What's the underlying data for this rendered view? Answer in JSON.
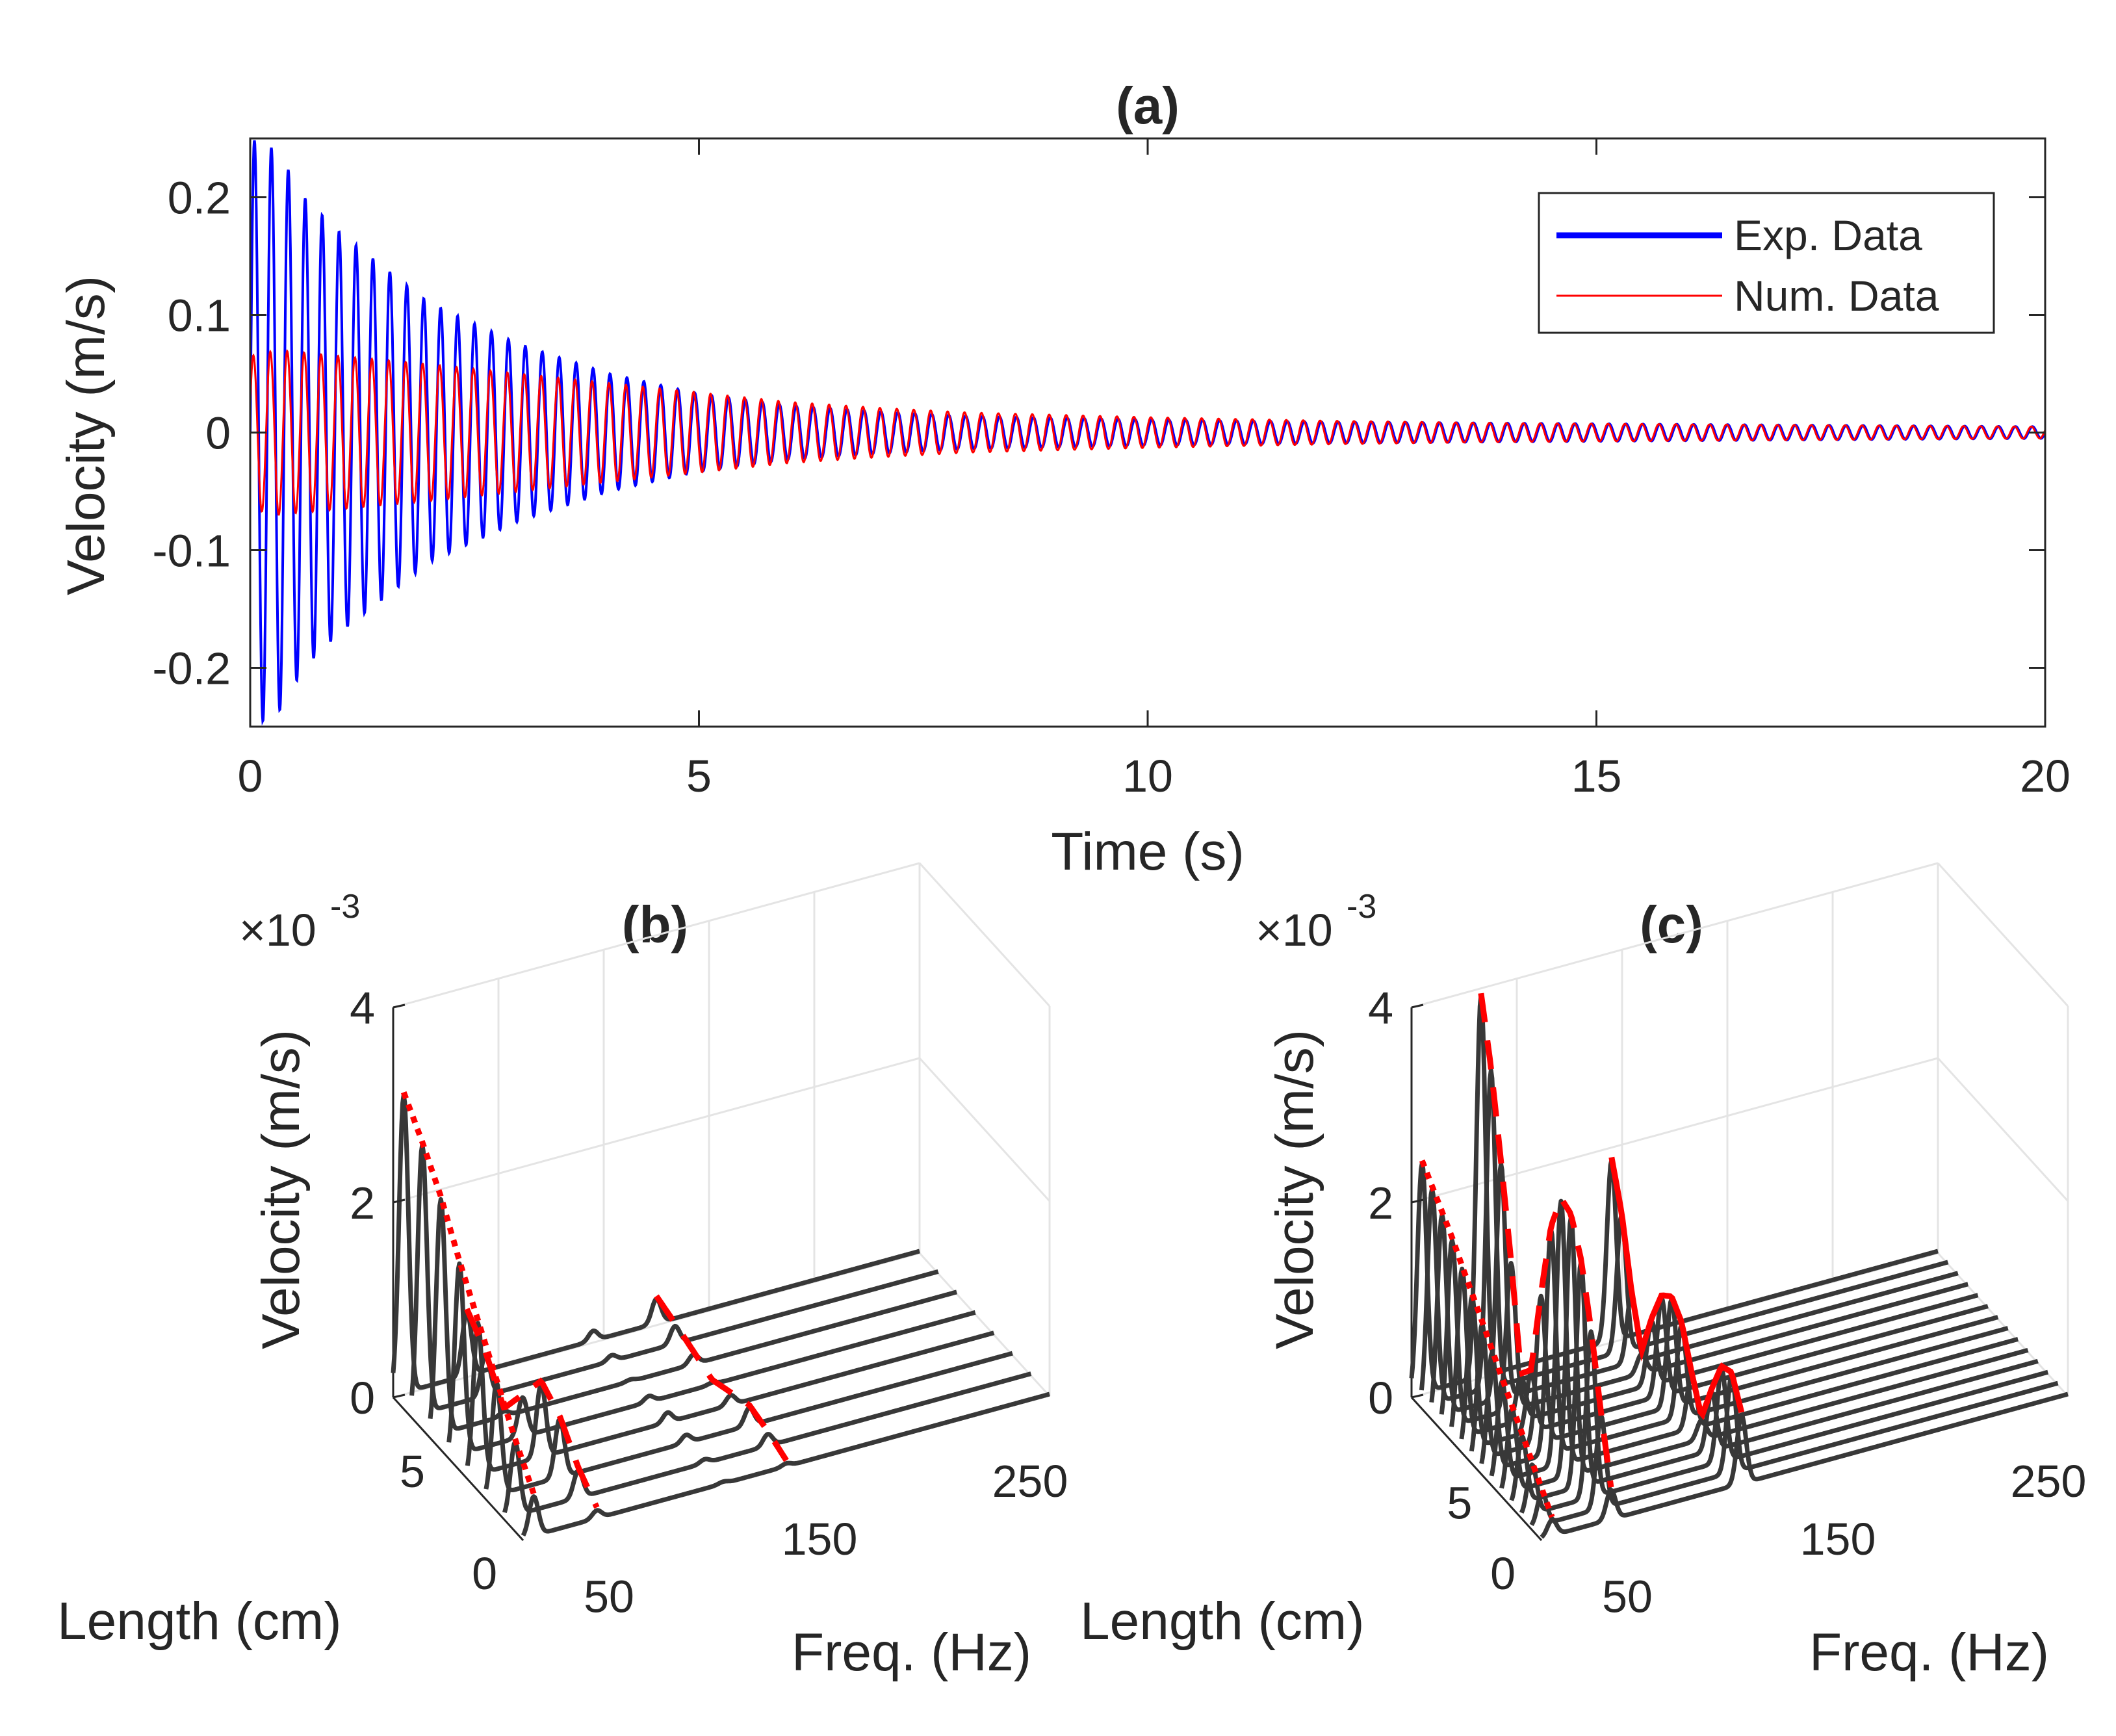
{
  "colors": {
    "exp": "#0000ff",
    "num": "#ff0000",
    "waterfall": "#383838",
    "fit": "#ff0000",
    "grid": "#e4e4e4",
    "axis": "#262626"
  },
  "chart_data": [
    {
      "id": "a",
      "type": "line",
      "title": "(a)",
      "xlabel": "Time (s)",
      "ylabel": "Velocity (m/s)",
      "xlim": [
        0,
        20
      ],
      "ylim": [
        -0.25,
        0.25
      ],
      "xticks": [
        0,
        5,
        10,
        15,
        20
      ],
      "xtick_labels": [
        "0",
        "5",
        "10",
        "15",
        "20"
      ],
      "yticks": [
        -0.2,
        -0.1,
        0,
        0.1,
        0.2
      ],
      "ytick_labels": [
        "-0.2",
        "-0.1",
        "0",
        "0.1",
        "0.2"
      ],
      "legend_position": "top-right",
      "series": [
        {
          "name": "Exp. Data",
          "envelope_t": [
            0,
            0.3,
            0.6,
            1,
            1.5,
            2,
            3,
            4,
            5,
            6,
            7,
            8,
            10,
            12,
            14,
            16,
            18,
            20
          ],
          "envelope_amp": [
            0.25,
            0.24,
            0.2,
            0.17,
            0.14,
            0.11,
            0.075,
            0.05,
            0.033,
            0.023,
            0.018,
            0.014,
            0.011,
            0.009,
            0.008,
            0.007,
            0.006,
            0.005
          ],
          "oscillation_hz": 5.3
        },
        {
          "name": "Num. Data",
          "envelope_t": [
            0,
            0.3,
            1,
            2,
            3,
            4,
            5,
            6,
            7,
            8,
            10,
            12,
            14,
            16,
            18,
            20
          ],
          "envelope_amp": [
            0.065,
            0.07,
            0.065,
            0.058,
            0.05,
            0.042,
            0.034,
            0.026,
            0.021,
            0.017,
            0.013,
            0.01,
            0.008,
            0.007,
            0.006,
            0.005
          ],
          "oscillation_hz": 5.3
        }
      ]
    },
    {
      "id": "b",
      "type": "waterfall",
      "title": "(b)",
      "exponent_label": "×10",
      "exponent_power": "-3",
      "zlabel": "Velocity (m/s)",
      "ylabel": "Length (cm)",
      "xlabel": "Freq. (Hz)",
      "zlim": [
        0,
        4
      ],
      "zticks": [
        0,
        2,
        4
      ],
      "ztick_labels": [
        "0",
        "2",
        "4"
      ],
      "yticks": [
        0,
        5
      ],
      "ytick_labels": [
        "0",
        "5"
      ],
      "xticks": [
        50,
        150,
        250
      ],
      "xtick_labels": [
        "50",
        "150",
        "250"
      ],
      "xlim": [
        0,
        250
      ],
      "length_lim": [
        0,
        9
      ],
      "num_traces": 8,
      "peaks": [
        {
          "freq": 5,
          "amps": [
            3.05,
            2.75,
            2.4,
            1.95,
            1.55,
            1.15,
            0.75,
            0.4
          ],
          "fit_style": "dotted"
        },
        {
          "freq": 35,
          "amps": [
            0.65,
            0.42,
            0.05,
            0.4,
            0.75,
            0.6,
            0.28,
            0.08
          ],
          "fit_style": "dashed"
        },
        {
          "freq": 95,
          "amps": [
            0.1,
            0.06,
            0.02,
            0.06,
            0.1,
            0.08,
            0.04,
            0.02
          ],
          "fit_style": "none"
        },
        {
          "freq": 125,
          "amps": [
            0.25,
            0.18,
            0.1,
            0.02,
            0.1,
            0.18,
            0.12,
            0.03
          ],
          "fit_style": "dashed"
        }
      ]
    },
    {
      "id": "c",
      "type": "waterfall",
      "title": "(c)",
      "exponent_label": "×10",
      "exponent_power": "-3",
      "zlabel": "Velocity (m/s)",
      "ylabel": "Length (cm)",
      "xlabel": "Freq. (Hz)",
      "zlim": [
        0,
        4
      ],
      "zticks": [
        0,
        2,
        4
      ],
      "ztick_labels": [
        "0",
        "2",
        "4"
      ],
      "yticks": [
        0,
        5
      ],
      "ytick_labels": [
        "0",
        "5"
      ],
      "xticks": [
        50,
        150,
        250
      ],
      "xtick_labels": [
        "50",
        "150",
        "250"
      ],
      "xlim": [
        0,
        250
      ],
      "length_lim": [
        0,
        15
      ],
      "num_traces": 14,
      "peaks": [
        {
          "freq": 5,
          "amps": [
            2.35,
            2.2,
            2.05,
            1.9,
            1.72,
            1.55,
            1.38,
            1.2,
            1.02,
            0.85,
            0.68,
            0.5,
            0.33,
            0.16
          ],
          "fit_style": "dotted"
        },
        {
          "freq": 33,
          "amps": [
            3.9,
            3.25,
            2.4,
            1.5,
            0.45,
            0.6,
            1.5,
            2.3,
            2.7,
            2.65,
            2.3,
            1.7,
            0.95,
            0.3
          ],
          "fit_style": "dashed"
        },
        {
          "freq": 95,
          "amps": [
            1.85,
            1.4,
            0.7,
            0.2,
            0.65,
            1.0,
            1.1,
            0.95,
            0.55,
            0.2,
            0.6,
            0.95,
            1.0,
            0.7
          ],
          "fit_style": "solid"
        }
      ]
    }
  ]
}
